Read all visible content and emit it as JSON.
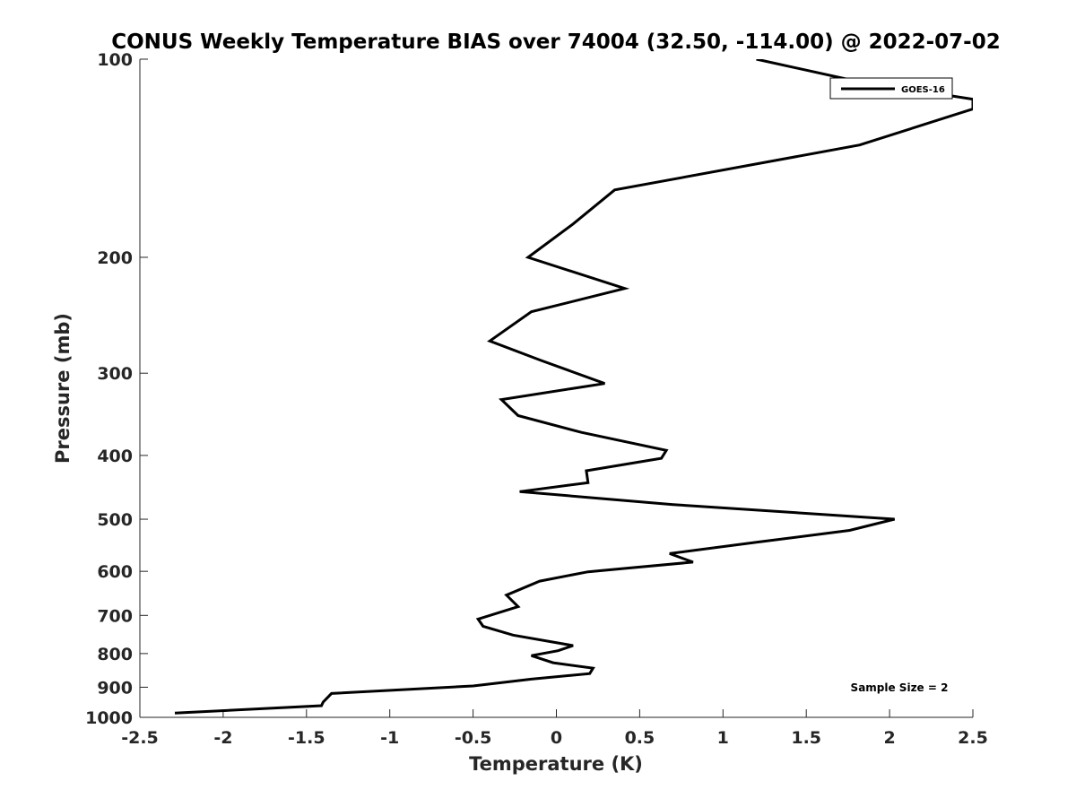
{
  "chart_data": {
    "type": "line",
    "title": "CONUS Weekly Temperature BIAS over 74004 (32.50, -114.00) @ 2022-07-02",
    "xlabel": "Temperature (K)",
    "ylabel": "Pressure (mb)",
    "xlim": [
      -2.5,
      2.5
    ],
    "ylim": [
      100,
      1000
    ],
    "y_scale": "log",
    "y_reversed": true,
    "x_ticks": [
      -2.5,
      -2,
      -1.5,
      -1,
      -0.5,
      0,
      0.5,
      1,
      1.5,
      2,
      2.5
    ],
    "x_tick_labels": [
      "-2.5",
      "-2",
      "-1.5",
      "-1",
      "-0.5",
      "0",
      "0.5",
      "1",
      "1.5",
      "2",
      "2.5"
    ],
    "y_ticks": [
      100,
      200,
      300,
      400,
      500,
      600,
      700,
      800,
      900,
      1000
    ],
    "y_tick_labels": [
      "100",
      "200",
      "300",
      "400",
      "500",
      "600",
      "700",
      "800",
      "900",
      "1000"
    ],
    "grid": false,
    "legend_position": "top-right",
    "annotation": "Sample Size = 2",
    "series": [
      {
        "name": "GOES-16",
        "color": "#000000",
        "x": [
          1.2,
          1.8,
          2.5,
          2.5,
          1.82,
          0.35,
          0.1,
          -0.17,
          0.41,
          -0.15,
          -0.4,
          -0.09,
          0.29,
          -0.33,
          -0.23,
          0.15,
          0.66,
          0.63,
          0.18,
          0.19,
          -0.22,
          0.7,
          2.03,
          1.76,
          1.2,
          0.68,
          0.82,
          0.19,
          -0.1,
          -0.3,
          -0.23,
          -0.47,
          -0.44,
          -0.26,
          0.1,
          0.01,
          -0.15,
          -0.02,
          0.22,
          0.2,
          -0.15,
          -0.5,
          -1.35,
          -1.4,
          -1.41,
          -2.29
        ],
        "y": [
          100,
          108,
          115,
          119,
          135,
          158,
          178,
          200,
          223,
          242,
          268,
          287,
          311,
          329,
          348,
          369,
          393,
          404,
          422,
          440,
          454,
          475,
          500,
          520,
          542,
          564,
          581,
          601,
          621,
          652,
          679,
          709,
          727,
          750,
          778,
          792,
          806,
          826,
          842,
          858,
          875,
          896,
          920,
          948,
          960,
          985
        ]
      }
    ]
  }
}
